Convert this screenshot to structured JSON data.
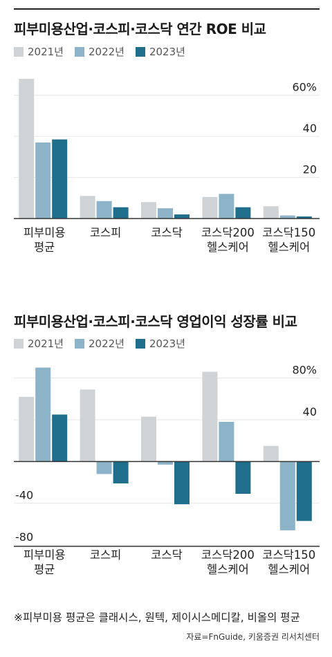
{
  "colors": {
    "y2021": "#d0d3d5",
    "y2022": "#8cb3c8",
    "y2023": "#1f6e8c",
    "grid": "#e6e6e6",
    "axis": "#333333"
  },
  "legend": [
    "2021년",
    "2022년",
    "2023년"
  ],
  "chart_data": [
    {
      "type": "bar",
      "title": "피부미용산업·코스피·코스닥 연간 ROE 비교",
      "categories": [
        [
          "피부미용",
          "평균"
        ],
        [
          "코스피"
        ],
        [
          "코스닥"
        ],
        [
          "코스닥200",
          "헬스케어"
        ],
        [
          "코스닥150",
          "헬스케어"
        ]
      ],
      "series": [
        {
          "name": "2021년",
          "values": [
            68,
            11,
            8,
            10.5,
            6
          ]
        },
        {
          "name": "2022년",
          "values": [
            37,
            8.5,
            5,
            12,
            1.5
          ]
        },
        {
          "name": "2023년",
          "values": [
            38.5,
            5.5,
            2,
            5.5,
            1
          ]
        }
      ],
      "ylim": [
        0,
        70
      ],
      "yticks": [
        20,
        40,
        60
      ],
      "ytick_labels": [
        "20",
        "40",
        "60%"
      ],
      "grid": true
    },
    {
      "type": "bar",
      "title": "피부미용산업·코스피·코스닥 영업이익 성장률 비교",
      "categories": [
        [
          "피부미용",
          "평균"
        ],
        [
          "코스피"
        ],
        [
          "코스닥"
        ],
        [
          "코스닥200",
          "헬스케어"
        ],
        [
          "코스닥150",
          "헬스케어"
        ]
      ],
      "series": [
        {
          "name": "2021년",
          "values": [
            62,
            69,
            43,
            86,
            15
          ]
        },
        {
          "name": "2022년",
          "values": [
            90,
            -12,
            -3,
            38,
            -66
          ]
        },
        {
          "name": "2023년",
          "values": [
            45,
            -21,
            -41,
            -31,
            -57
          ]
        }
      ],
      "ylim": [
        -80,
        95
      ],
      "yticks": [
        -80,
        -40,
        40,
        80
      ],
      "ytick_labels": [
        "-80",
        "-40",
        "40",
        "80%"
      ],
      "grid": true
    }
  ],
  "footnote": "※피부미용 평균은 클래시스, 원텍, 제이시스메디칼, 비올의 평균",
  "source": "자료=FnGuide, 키움증권 리서치센터"
}
